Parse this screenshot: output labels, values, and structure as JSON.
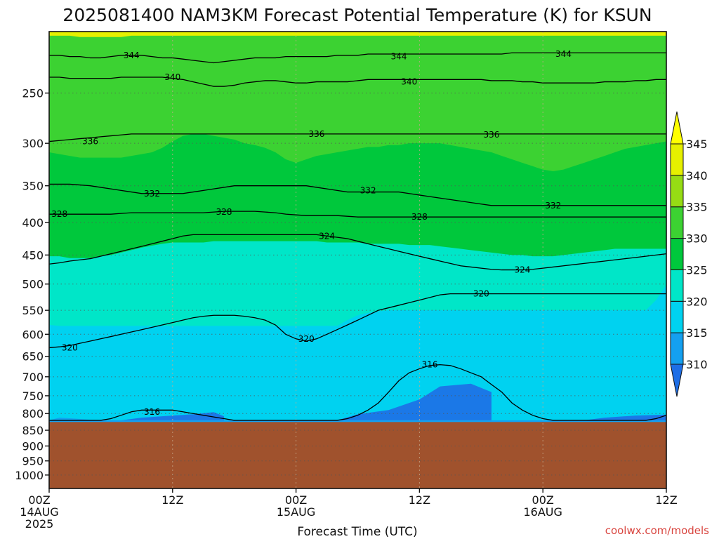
{
  "chart_data": {
    "type": "heatmap",
    "title": "2025081400 NAM3KM Forecast Potential Temperature (K) for KSUN",
    "xlabel": "Forecast Time (UTC)",
    "ylabel": "",
    "y_scale": "log",
    "y_reversed": true,
    "ylim": [
      200,
      1050
    ],
    "y_ticks": [
      250,
      300,
      350,
      400,
      450,
      500,
      550,
      600,
      650,
      700,
      750,
      800,
      850,
      900,
      950,
      1000
    ],
    "x_ticks": [
      {
        "hour": 0,
        "line1": "00Z",
        "line2": "14AUG",
        "line3": "2025"
      },
      {
        "hour": 12,
        "line1": "12Z",
        "line2": "",
        "line3": ""
      },
      {
        "hour": 24,
        "line1": "00Z",
        "line2": "15AUG",
        "line3": ""
      },
      {
        "hour": 36,
        "line1": "12Z",
        "line2": "",
        "line3": ""
      },
      {
        "hour": 48,
        "line1": "00Z",
        "line2": "16AUG",
        "line3": ""
      },
      {
        "hour": 60,
        "line1": "12Z",
        "line2": "",
        "line3": ""
      }
    ],
    "xlim": [
      0,
      60
    ],
    "grid": true,
    "ground_level_pressure": 825,
    "colorbar": {
      "ticks": [
        310,
        315,
        320,
        325,
        330,
        335,
        340,
        345
      ],
      "colors": [
        "#1e6ee6",
        "#14a0f0",
        "#00d2f0",
        "#00e6c8",
        "#00c83c",
        "#3cd232",
        "#96dc14",
        "#e6f000",
        "#ffff00"
      ],
      "extend": "both"
    },
    "color_boundaries": [
      {
        "level": 315,
        "p": [
          820,
          812,
          814,
          816,
          818,
          820,
          820,
          820,
          820,
          820,
          820,
          820,
          820,
          820,
          820,
          820,
          820,
          820,
          820,
          820,
          820,
          820,
          820,
          820,
          820,
          820,
          820,
          820,
          820,
          820,
          820,
          820,
          820,
          820,
          820,
          820,
          820,
          820,
          820,
          820,
          820,
          820,
          820,
          820,
          820,
          820,
          820,
          820,
          820,
          820,
          820,
          820,
          820,
          820,
          820,
          820,
          820,
          820,
          812,
          806,
          805
        ]
      },
      {
        "level": 320,
        "p": [
          580,
          582,
          582,
          582,
          582,
          582,
          582,
          582,
          582,
          582,
          582,
          582,
          582,
          582,
          582,
          582,
          582,
          582,
          582,
          582,
          582,
          582,
          582,
          582,
          582,
          582,
          582,
          582,
          582,
          570,
          560,
          555,
          552,
          550,
          550,
          550,
          550,
          550,
          550,
          550,
          550,
          550,
          550,
          550,
          550,
          550,
          550,
          550,
          550,
          550,
          550,
          550,
          550,
          550,
          550,
          550,
          550,
          550,
          550,
          530,
          502
        ]
      },
      {
        "level": 325,
        "p": [
          452,
          452,
          455,
          455,
          455,
          452,
          450,
          446,
          442,
          438,
          435,
          432,
          430,
          430,
          430,
          430,
          428,
          428,
          428,
          428,
          428,
          428,
          428,
          428,
          428,
          428,
          428,
          430,
          430,
          430,
          430,
          432,
          432,
          432,
          432,
          434,
          434,
          434,
          436,
          438,
          440,
          442,
          444,
          446,
          448,
          450,
          450,
          452,
          452,
          452,
          450,
          448,
          446,
          444,
          442,
          440,
          440,
          440,
          440,
          440,
          440
        ]
      },
      {
        "level": 330,
        "p": [
          310,
          312,
          314,
          316,
          316,
          316,
          316,
          316,
          314,
          312,
          310,
          305,
          298,
          292,
          290,
          290,
          292,
          294,
          296,
          300,
          302,
          305,
          310,
          318,
          322,
          318,
          314,
          312,
          310,
          308,
          306,
          304,
          304,
          302,
          302,
          300,
          300,
          300,
          300,
          302,
          304,
          306,
          308,
          310,
          314,
          318,
          322,
          326,
          330,
          332,
          330,
          326,
          322,
          318,
          314,
          310,
          306,
          304,
          302,
          300,
          298
        ]
      },
      {
        "level": 335,
        "p": [
          196,
          194,
          192,
          190,
          188,
          186,
          186,
          186,
          186,
          184,
          184,
          182,
          182,
          182,
          182,
          182,
          182,
          182,
          182,
          182,
          182,
          182,
          182,
          182,
          182,
          182,
          182,
          182,
          182,
          182,
          182,
          182,
          182,
          182,
          182,
          182,
          182,
          182,
          182,
          182,
          182,
          182,
          182,
          182,
          182,
          182,
          182,
          182,
          182,
          182,
          182,
          182,
          182,
          182,
          182,
          182,
          182,
          182,
          182,
          182,
          182
        ]
      },
      {
        "level": 340,
        "p": [
          203,
          203,
          203,
          204,
          204,
          204,
          204,
          204,
          203,
          203,
          203,
          203,
          203,
          203,
          203,
          203,
          203,
          203,
          203,
          203,
          203,
          203,
          203,
          203,
          203,
          203,
          203,
          203,
          203,
          203,
          203,
          203,
          203,
          203,
          203,
          203,
          203,
          203,
          203,
          203,
          203,
          203,
          203,
          203,
          203,
          203,
          203,
          203,
          203,
          203,
          203,
          203,
          203,
          203,
          203,
          203,
          203,
          203,
          203,
          203,
          203
        ]
      },
      {
        "level": 345,
        "p": [
          197,
          198,
          198,
          199,
          199,
          199,
          199,
          199,
          199,
          199,
          199,
          198,
          198,
          198,
          198,
          198,
          198,
          198,
          198,
          198,
          197,
          197,
          197,
          197,
          197,
          197,
          197,
          197,
          197,
          197,
          197,
          197,
          197,
          197,
          197,
          197,
          197,
          197,
          197,
          197,
          197,
          197,
          197,
          197,
          197,
          197,
          197,
          197,
          197,
          197,
          197,
          197,
          197,
          197,
          197,
          197,
          197,
          197,
          197,
          197,
          197
        ]
      }
    ],
    "shaded_pockets": [
      {
        "level": 310,
        "t_start": 7,
        "t_end": 17,
        "pts": [
          [
            7,
            820
          ],
          [
            9,
            812
          ],
          [
            12,
            806
          ],
          [
            14,
            802
          ],
          [
            16,
            796
          ],
          [
            17,
            808
          ],
          [
            17,
            820
          ]
        ]
      },
      {
        "level": 310,
        "t_start": 28,
        "t_end": 43,
        "pts": [
          [
            28,
            820
          ],
          [
            30,
            802
          ],
          [
            33,
            790
          ],
          [
            36,
            760
          ],
          [
            38,
            725
          ],
          [
            41,
            718
          ],
          [
            43,
            740
          ],
          [
            43,
            805
          ],
          [
            43,
            820
          ]
        ]
      },
      {
        "level": 310,
        "t_start": 52,
        "t_end": 60,
        "pts": [
          [
            52,
            820
          ],
          [
            54,
            812
          ],
          [
            57,
            806
          ],
          [
            60,
            803
          ],
          [
            60,
            820
          ]
        ]
      }
    ],
    "contours": [
      {
        "level": 344,
        "label_positions": [
          [
            8,
            218
          ],
          [
            34,
            219
          ],
          [
            50,
            217
          ]
        ],
        "p": [
          218,
          218,
          219,
          219,
          220,
          220,
          219,
          218,
          218,
          218,
          219,
          220,
          220,
          221,
          222,
          223,
          224,
          223,
          222,
          221,
          220,
          220,
          220,
          219,
          219,
          219,
          219,
          219,
          218,
          218,
          218,
          217,
          217,
          217,
          217,
          217,
          217,
          217,
          217,
          217,
          217,
          217,
          217,
          217,
          217,
          216,
          216,
          216,
          216,
          216,
          216,
          216,
          216,
          216,
          216,
          216,
          216,
          216,
          216,
          216,
          216
        ]
      },
      {
        "level": 340,
        "label_positions": [
          [
            12,
            236
          ],
          [
            35,
            240
          ]
        ],
        "p": [
          236,
          236,
          237,
          237,
          237,
          237,
          237,
          236,
          236,
          236,
          236,
          236,
          237,
          238,
          240,
          242,
          244,
          244,
          243,
          241,
          240,
          239,
          239,
          240,
          241,
          241,
          240,
          240,
          240,
          240,
          239,
          238,
          238,
          238,
          238,
          238,
          238,
          238,
          238,
          238,
          238,
          238,
          238,
          239,
          239,
          239,
          240,
          240,
          241,
          241,
          241,
          241,
          241,
          241,
          240,
          240,
          240,
          239,
          239,
          238,
          238
        ]
      },
      {
        "level": 336,
        "label_positions": [
          [
            4,
            298
          ],
          [
            26,
            290
          ],
          [
            43,
            291
          ]
        ],
        "p": [
          298,
          297,
          296,
          295,
          294,
          293,
          292,
          291,
          290,
          290,
          290,
          290,
          290,
          290,
          290,
          290,
          290,
          290,
          290,
          290,
          290,
          290,
          290,
          290,
          290,
          290,
          290,
          290,
          290,
          290,
          290,
          290,
          290,
          290,
          290,
          290,
          290,
          290,
          290,
          290,
          290,
          290,
          290,
          290,
          290,
          290,
          290,
          290,
          290,
          290,
          290,
          290,
          290,
          290,
          290,
          290,
          290,
          290,
          290,
          290,
          290
        ]
      },
      {
        "level": 332,
        "label_positions": [
          [
            10,
            360
          ],
          [
            31,
            356
          ],
          [
            49,
            376
          ]
        ],
        "p": [
          348,
          348,
          348,
          349,
          350,
          352,
          354,
          356,
          358,
          360,
          360,
          360,
          360,
          360,
          358,
          356,
          354,
          352,
          350,
          350,
          350,
          350,
          350,
          350,
          350,
          350,
          352,
          354,
          356,
          358,
          358,
          358,
          358,
          358,
          358,
          360,
          362,
          364,
          366,
          368,
          370,
          372,
          374,
          376,
          376,
          376,
          376,
          376,
          376,
          376,
          376,
          376,
          376,
          376,
          376,
          376,
          376,
          376,
          376,
          376,
          376
        ]
      },
      {
        "level": 328,
        "label_positions": [
          [
            1,
            388
          ],
          [
            17,
            385
          ],
          [
            36,
            392
          ]
        ],
        "p": [
          388,
          388,
          388,
          388,
          388,
          388,
          388,
          387,
          386,
          386,
          386,
          386,
          386,
          386,
          386,
          386,
          385,
          384,
          384,
          384,
          384,
          385,
          386,
          388,
          389,
          390,
          390,
          390,
          390,
          391,
          392,
          392,
          392,
          392,
          392,
          392,
          392,
          392,
          392,
          392,
          392,
          392,
          392,
          392,
          392,
          392,
          392,
          392,
          392,
          392,
          392,
          392,
          392,
          392,
          392,
          392,
          392,
          392,
          392,
          392,
          392
        ]
      },
      {
        "level": 324,
        "label_positions": [
          [
            27,
            420
          ],
          [
            46,
            475
          ]
        ],
        "p": [
          465,
          463,
          460,
          458,
          456,
          452,
          448,
          444,
          440,
          436,
          432,
          428,
          424,
          420,
          418,
          418,
          418,
          418,
          418,
          418,
          418,
          418,
          418,
          418,
          418,
          418,
          418,
          420,
          422,
          424,
          428,
          432,
          436,
          440,
          444,
          448,
          452,
          456,
          460,
          464,
          468,
          470,
          472,
          474,
          475,
          475,
          475,
          474,
          472,
          470,
          468,
          466,
          464,
          462,
          460,
          458,
          456,
          454,
          452,
          450,
          448
        ]
      },
      {
        "level": 320,
        "label_positions": [
          [
            2,
            630
          ],
          [
            25,
            610
          ],
          [
            42,
            518
          ]
        ],
        "p": [
          630,
          628,
          625,
          620,
          615,
          610,
          605,
          600,
          595,
          590,
          585,
          580,
          575,
          570,
          565,
          562,
          560,
          560,
          560,
          562,
          565,
          570,
          580,
          600,
          610,
          615,
          610,
          600,
          590,
          580,
          570,
          560,
          550,
          545,
          540,
          535,
          530,
          525,
          520,
          518,
          518,
          518,
          518,
          518,
          518,
          518,
          518,
          518,
          518,
          518,
          518,
          518,
          518,
          518,
          518,
          518,
          518,
          518,
          518,
          518,
          518
        ]
      },
      {
        "level": 316,
        "label_positions": [
          [
            10,
            795
          ],
          [
            37,
            670
          ]
        ],
        "p": [
          820,
          820,
          820,
          820,
          820,
          820,
          815,
          805,
          795,
          790,
          790,
          790,
          790,
          795,
          800,
          805,
          810,
          815,
          820,
          820,
          820,
          820,
          820,
          820,
          820,
          820,
          820,
          820,
          820,
          815,
          805,
          790,
          770,
          740,
          710,
          690,
          680,
          672,
          670,
          672,
          680,
          690,
          700,
          720,
          740,
          770,
          790,
          805,
          815,
          820,
          820,
          820,
          820,
          820,
          820,
          820,
          820,
          820,
          820,
          815,
          805
        ]
      }
    ]
  },
  "credit": "coolwx.com/models"
}
